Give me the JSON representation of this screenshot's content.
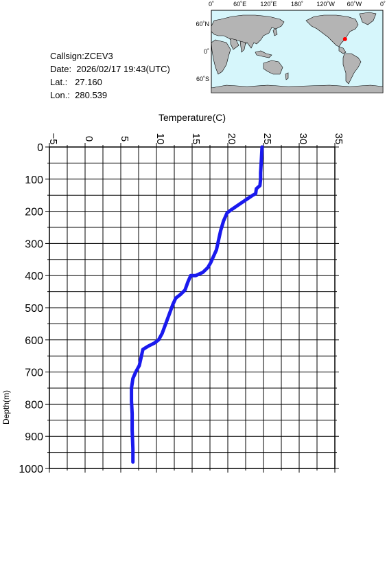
{
  "info": {
    "callsign": "Callsign:ZCEV3",
    "date": "Date:  2026/02/17 19:43(UTC)",
    "lat": "Lat.:   27.160",
    "lon": "Lon.:  280.539"
  },
  "map": {
    "top_labels": [
      "0˚",
      "60˚E",
      "120˚E",
      "180˚",
      "120˚W",
      "60˚W",
      "0˚"
    ],
    "side_labels": [
      "60˚N",
      "0˚",
      "60˚S"
    ],
    "marker": {
      "lon": 280.539,
      "lat": 27.16,
      "color": "#ff0000"
    },
    "ocean_color": "#d6f6fb",
    "land_color": "#b4b4b4"
  },
  "chart_data": {
    "type": "line",
    "title": "Temperature(C)",
    "xlabel": "Temperature(C)",
    "ylabel": "Depth(m)",
    "xlim": [
      -5,
      35
    ],
    "ylim": [
      0,
      1000
    ],
    "y_inverted": true,
    "x_ticks": [
      "-5",
      "0",
      "5",
      "10",
      "15",
      "20",
      "25",
      "30",
      "35"
    ],
    "y_ticks": [
      "0",
      "100",
      "200",
      "300",
      "400",
      "500",
      "600",
      "700",
      "800",
      "900",
      "1000"
    ],
    "grid": true,
    "line_color": "#1a1aee",
    "series": [
      {
        "x": [
          24.8,
          24.7,
          24.6,
          24.6,
          24.5,
          24.0,
          23.9,
          23.5,
          22.5,
          21.5,
          20.5,
          19.9,
          19.4,
          19.0,
          18.7,
          18.4,
          18.0,
          17.6,
          17.2,
          16.5,
          15.5,
          14.8,
          14.4,
          14.0,
          13.3,
          12.7,
          12.3,
          11.8,
          11.3,
          10.8,
          10.3,
          10.0,
          9.7,
          8.8,
          8.1,
          7.8,
          7.6,
          7.1,
          6.7,
          6.5,
          6.5,
          6.6,
          6.6,
          6.7,
          6.7
        ],
        "y": [
          0,
          40,
          80,
          100,
          120,
          130,
          145,
          150,
          165,
          180,
          195,
          205,
          230,
          260,
          290,
          320,
          340,
          360,
          375,
          390,
          400,
          400,
          420,
          445,
          460,
          470,
          490,
          520,
          550,
          580,
          600,
          605,
          610,
          620,
          630,
          660,
          680,
          700,
          720,
          750,
          790,
          830,
          880,
          940,
          980
        ]
      }
    ]
  }
}
